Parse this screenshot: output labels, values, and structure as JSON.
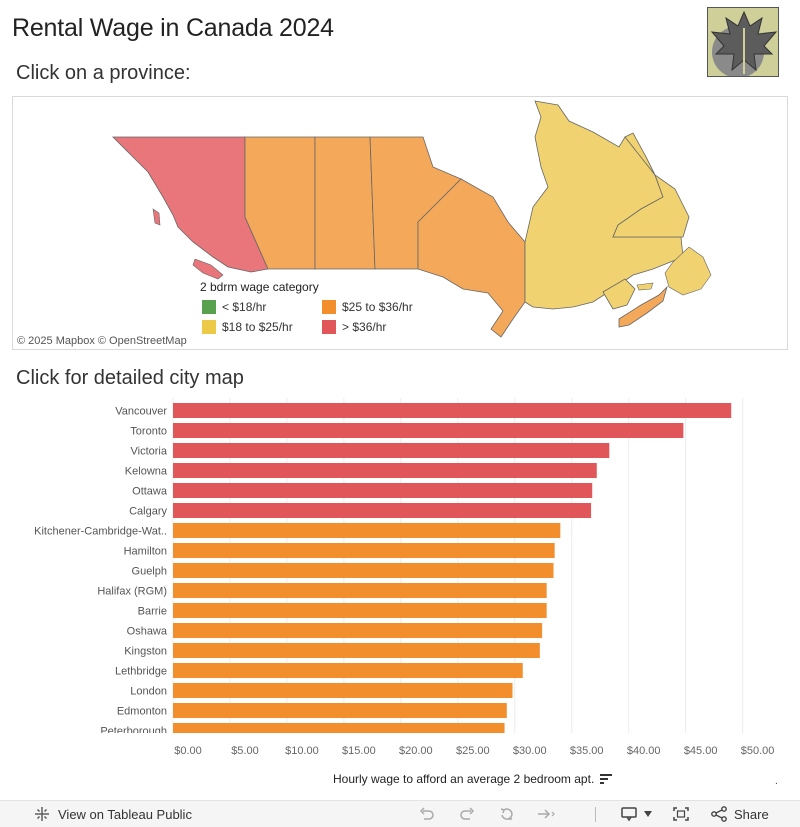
{
  "title": "Rental Wage in Canada 2024",
  "map_section": {
    "subtitle": "Click on a province:",
    "attribution": "© 2025 Mapbox  © OpenStreetMap",
    "legend": {
      "title": "2 bdrm wage category",
      "items": [
        {
          "label": "< $18/hr",
          "color": "#59a14f"
        },
        {
          "label": "$25 to $36/hr",
          "color": "#f28e2b"
        },
        {
          "label": "$18 to $25/hr",
          "color": "#edc948"
        },
        {
          "label": "> $36/hr",
          "color": "#e15759"
        }
      ]
    }
  },
  "chart_section": {
    "subtitle": "Click for detailed city map"
  },
  "chart_data": {
    "type": "bar",
    "orientation": "horizontal",
    "categories": [
      "Vancouver",
      "Toronto",
      "Victoria",
      "Kelowna",
      "Ottawa",
      "Calgary",
      "Kitchener-Cambridge-Wat..",
      "Hamilton",
      "Guelph",
      "Halifax (RGM)",
      "Barrie",
      "Oshawa",
      "Kingston",
      "Lethbridge",
      "London",
      "Edmonton",
      "Peterborough"
    ],
    "values": [
      49.0,
      44.8,
      38.3,
      37.2,
      36.8,
      36.7,
      34.0,
      33.5,
      33.4,
      32.8,
      32.8,
      32.4,
      32.2,
      30.7,
      29.8,
      29.3,
      29.1
    ],
    "bar_colors": [
      "#e15759",
      "#e15759",
      "#e15759",
      "#e15759",
      "#e15759",
      "#e15759",
      "#f28e2b",
      "#f28e2b",
      "#f28e2b",
      "#f28e2b",
      "#f28e2b",
      "#f28e2b",
      "#f28e2b",
      "#f28e2b",
      "#f28e2b",
      "#f28e2b",
      "#f28e2b"
    ],
    "xticks": [
      "$0.00",
      "$5.00",
      "$10.00",
      "$15.00",
      "$20.00",
      "$25.00",
      "$30.00",
      "$35.00",
      "$40.00",
      "$45.00",
      "$50.00"
    ],
    "xlim": [
      0,
      51
    ],
    "xlabel": "Hourly wage to afford an average 2 bedroom apt.",
    "grid": true
  },
  "toolbar": {
    "view_label": "View on Tableau Public",
    "share_label": "Share"
  }
}
